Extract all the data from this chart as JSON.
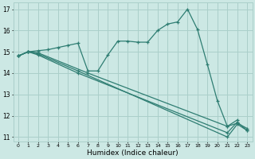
{
  "xlabel": "Humidex (Indice chaleur)",
  "bg_color": "#cce8e4",
  "grid_color": "#aacfca",
  "line_color": "#2e7d72",
  "xlim": [
    -0.5,
    23.5
  ],
  "ylim": [
    10.8,
    17.3
  ],
  "yticks": [
    11,
    12,
    13,
    14,
    15,
    16,
    17
  ],
  "xticks": [
    0,
    1,
    2,
    3,
    4,
    5,
    6,
    7,
    8,
    9,
    10,
    11,
    12,
    13,
    14,
    15,
    16,
    17,
    18,
    19,
    20,
    21,
    22,
    23
  ],
  "curves": [
    {
      "x": [
        0,
        1,
        2,
        3,
        4,
        5,
        6,
        7,
        8,
        9,
        10,
        11,
        12,
        13,
        14,
        15,
        16,
        17,
        18,
        19,
        20,
        21,
        22
      ],
      "y": [
        14.8,
        15.0,
        15.05,
        15.1,
        15.2,
        15.3,
        15.4,
        14.1,
        14.1,
        14.85,
        15.5,
        15.5,
        15.45,
        15.45,
        16.0,
        16.3,
        16.4,
        17.0,
        16.05,
        14.4,
        12.7,
        11.5,
        11.8
      ]
    },
    {
      "x": [
        0,
        1,
        2,
        7,
        21,
        22,
        23
      ],
      "y": [
        14.8,
        15.0,
        14.95,
        14.0,
        11.5,
        11.65,
        11.4
      ]
    },
    {
      "x": [
        0,
        1,
        2,
        6,
        21,
        22,
        23
      ],
      "y": [
        14.8,
        15.0,
        14.9,
        14.1,
        11.0,
        11.6,
        11.3
      ]
    },
    {
      "x": [
        0,
        1,
        2,
        6,
        21,
        22,
        23
      ],
      "y": [
        14.8,
        15.0,
        14.85,
        14.0,
        11.2,
        11.7,
        11.3
      ]
    }
  ]
}
